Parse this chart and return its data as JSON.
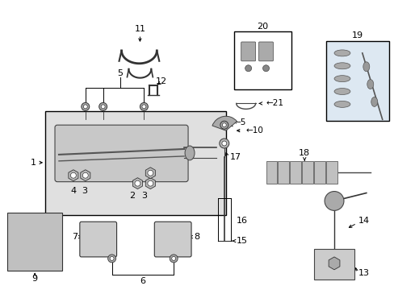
{
  "bg_color": "#ffffff",
  "fig_width": 4.89,
  "fig_height": 3.6,
  "dpi": 100,
  "lc": "#1a1a1a",
  "fs": 7.5
}
